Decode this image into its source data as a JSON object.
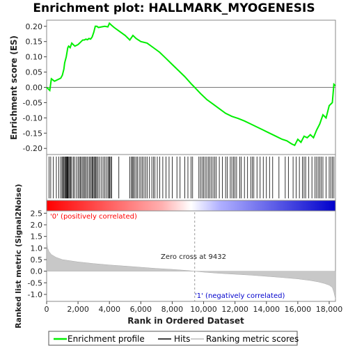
{
  "chart_data": {
    "type": "line",
    "title": "Enrichment plot: HALLMARK_MYOGENESIS",
    "es_panel": {
      "ylabel": "Enrichment score (ES)",
      "ylim": [
        -0.22,
        0.22
      ],
      "yticks": [
        "0.20",
        "0.15",
        "0.10",
        "0.05",
        "0.00",
        "-0.05",
        "-0.10",
        "-0.15",
        "-0.20"
      ],
      "ytick_values": [
        0.2,
        0.15,
        0.1,
        0.05,
        0.0,
        -0.05,
        -0.1,
        -0.15,
        -0.2
      ],
      "series": [
        {
          "name": "Enrichment profile",
          "color": "#00ff00",
          "x": [
            0,
            200,
            300,
            500,
            700,
            900,
            1000,
            1100,
            1150,
            1250,
            1350,
            1400,
            1500,
            1600,
            1700,
            1800,
            2000,
            2100,
            2200,
            2300,
            2400,
            2500,
            2600,
            2700,
            2800,
            2900,
            3000,
            3100,
            3200,
            3300,
            3500,
            3700,
            3900,
            4000,
            4100,
            4300,
            4600,
            5000,
            5300,
            5500,
            5700,
            6000,
            6400,
            6800,
            7200,
            7600,
            8000,
            8400,
            8800,
            9200,
            9432,
            9800,
            10200,
            10600,
            11000,
            11400,
            11800,
            12200,
            12600,
            13000,
            13400,
            13800,
            14200,
            14600,
            15000,
            15300,
            15600,
            15800,
            16000,
            16200,
            16400,
            16600,
            16800,
            17000,
            17200,
            17400,
            17600,
            17800,
            18000,
            18200,
            18300,
            18400
          ],
          "y": [
            0.0,
            -0.01,
            0.028,
            0.02,
            0.025,
            0.03,
            0.04,
            0.06,
            0.08,
            0.1,
            0.13,
            0.135,
            0.13,
            0.145,
            0.14,
            0.135,
            0.14,
            0.145,
            0.15,
            0.155,
            0.155,
            0.158,
            0.156,
            0.16,
            0.158,
            0.165,
            0.18,
            0.2,
            0.2,
            0.196,
            0.198,
            0.2,
            0.198,
            0.21,
            0.205,
            0.196,
            0.185,
            0.17,
            0.155,
            0.17,
            0.16,
            0.15,
            0.145,
            0.13,
            0.115,
            0.095,
            0.075,
            0.055,
            0.035,
            0.012,
            0.0,
            -0.02,
            -0.04,
            -0.055,
            -0.07,
            -0.085,
            -0.095,
            -0.102,
            -0.11,
            -0.12,
            -0.13,
            -0.14,
            -0.15,
            -0.16,
            -0.17,
            -0.175,
            -0.185,
            -0.19,
            -0.17,
            -0.18,
            -0.16,
            -0.165,
            -0.155,
            -0.165,
            -0.14,
            -0.12,
            -0.09,
            -0.1,
            -0.06,
            -0.05,
            0.01,
            0.005
          ]
        }
      ]
    },
    "hits_panel": {
      "legend_name": "Hits",
      "hit_positions": [
        150,
        260,
        430,
        620,
        780,
        900,
        980,
        1040,
        1100,
        1160,
        1200,
        1250,
        1290,
        1330,
        1370,
        1420,
        1480,
        1540,
        1600,
        1700,
        1780,
        1900,
        2000,
        2080,
        2150,
        2220,
        2300,
        2380,
        2440,
        2520,
        2600,
        2700,
        2760,
        2840,
        2900,
        2960,
        3020,
        3080,
        3140,
        3200,
        3280,
        3380,
        3500,
        3600,
        3700,
        3800,
        3900,
        3960,
        4020,
        4080,
        4140,
        4600,
        5300,
        5400,
        5460,
        5520,
        5600,
        5700,
        5780,
        5900,
        6000,
        6100,
        6200,
        6300,
        6400,
        6550,
        6700,
        6800,
        6900,
        7050,
        7200,
        7400,
        7600,
        7800,
        8000,
        8300,
        8500,
        8800,
        9000,
        9200,
        9300,
        9700,
        9800,
        9900,
        10000,
        10100,
        10200,
        10300,
        10400,
        10500,
        10600,
        10700,
        10800,
        11000,
        11200,
        11400,
        11500,
        11700,
        11800,
        11900,
        12000,
        12100,
        12300,
        12400,
        12600,
        12800,
        13000,
        13100,
        13200,
        13400,
        13600,
        13800,
        14000,
        14200,
        14400,
        14800,
        15200,
        15400,
        15700,
        15900,
        16100,
        16300,
        16400,
        16500,
        16700,
        16900,
        17100,
        17200,
        17300,
        17400,
        17500,
        17600,
        17800,
        18000,
        18100,
        18200,
        18300
      ],
      "gradient_stops": [
        "#ff0000",
        "#ffb0b0",
        "#ffffff",
        "#b0b0ff",
        "#0000cc"
      ]
    },
    "metric_panel": {
      "ylabel": "Ranked list metric (Signal2Noise)",
      "legend_name": "Ranking metric scores",
      "ylim": [
        -1.3,
        2.6
      ],
      "yticks": [
        "2.5",
        "2.0",
        "1.5",
        "1.0",
        "0.5",
        "0.0",
        "-0.5",
        "-1.0"
      ],
      "ytick_values": [
        2.5,
        2.0,
        1.5,
        1.0,
        0.5,
        0.0,
        -0.5,
        -1.0
      ],
      "ranks": [
        0,
        20,
        60,
        150,
        300,
        600,
        1000,
        2000,
        3000,
        4000,
        5000,
        6000,
        7000,
        8000,
        9000,
        9432,
        10000,
        11000,
        12000,
        13000,
        14000,
        15000,
        16000,
        16800,
        17300,
        17700,
        18000,
        18200,
        18300,
        18400
      ],
      "metric": [
        2.6,
        1.25,
        1.0,
        0.85,
        0.72,
        0.6,
        0.5,
        0.4,
        0.33,
        0.27,
        0.22,
        0.17,
        0.12,
        0.08,
        0.03,
        0.0,
        -0.04,
        -0.09,
        -0.13,
        -0.17,
        -0.22,
        -0.27,
        -0.33,
        -0.4,
        -0.46,
        -0.53,
        -0.6,
        -0.7,
        -0.9,
        -1.2
      ],
      "zero_cross_label": "Zero cross at 9432",
      "zero_cross_rank": 9432,
      "positive_label": "'0' (positively correlated)",
      "negative_label": "'1' (negatively correlated)",
      "positive_color": "#ff0000",
      "negative_color": "#0000cc",
      "fill_color": "#c8c8c8"
    },
    "x_axis": {
      "xlabel": "Rank in Ordered Dataset",
      "xlim": [
        0,
        18400
      ],
      "xticks": [
        "0",
        "2,000",
        "4,000",
        "6,000",
        "8,000",
        "10,000",
        "12,000",
        "14,000",
        "16,000",
        "18,000"
      ],
      "xtick_values": [
        0,
        2000,
        4000,
        6000,
        8000,
        10000,
        12000,
        14000,
        16000,
        18000
      ]
    },
    "legend": {
      "placement": "bottom",
      "entries": [
        "Enrichment profile",
        "Hits",
        "Ranking metric scores"
      ]
    }
  }
}
